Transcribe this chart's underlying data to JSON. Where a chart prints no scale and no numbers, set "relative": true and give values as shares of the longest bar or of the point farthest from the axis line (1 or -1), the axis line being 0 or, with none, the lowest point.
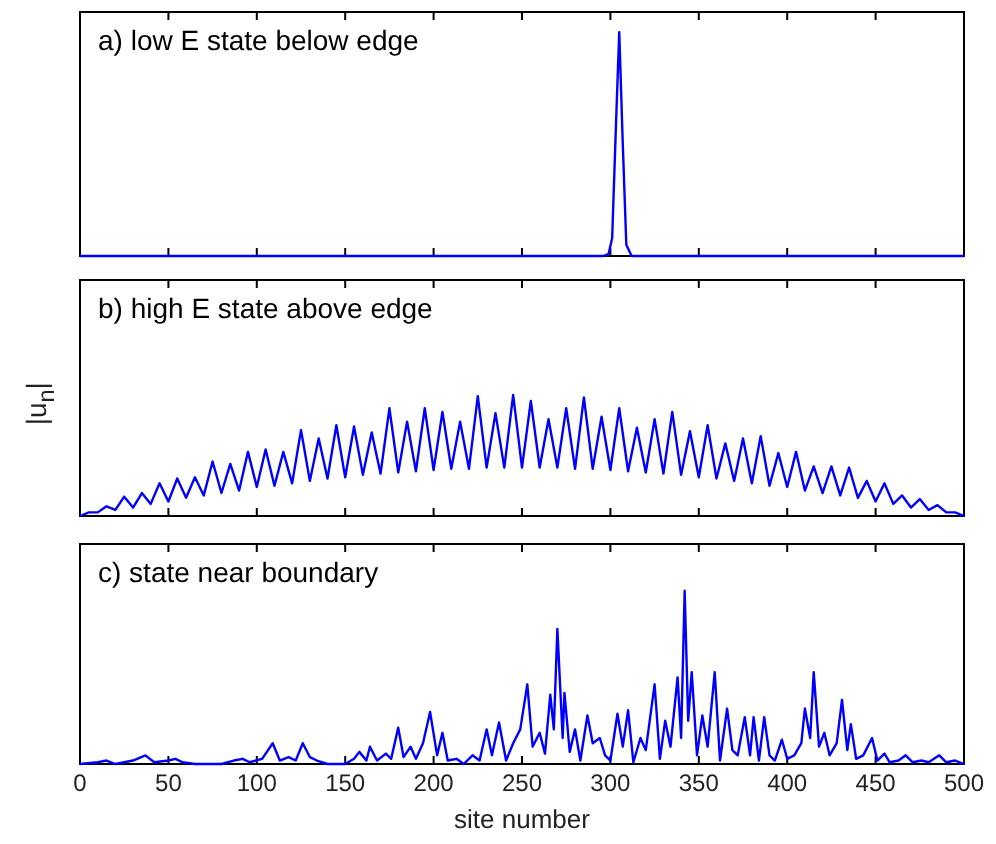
{
  "chart_data": [
    {
      "type": "line",
      "title": "a) low E state below edge",
      "relative": true,
      "marker": "none",
      "tick_labels": false,
      "xlim": [
        0,
        500
      ],
      "xticks": [
        0,
        50,
        100,
        150,
        200,
        250,
        300,
        350,
        400,
        450,
        500
      ],
      "series": [
        {
          "color": "#0000ff",
          "x": [
            0,
            296,
            299,
            301,
            303,
            305,
            307,
            309,
            312,
            500
          ],
          "values": [
            0,
            0,
            0.01,
            0.08,
            0.55,
            1,
            0.5,
            0.05,
            0,
            0
          ]
        }
      ]
    },
    {
      "type": "line",
      "title": "b) high E state above edge",
      "ylabel": "|u$_{n}$|",
      "relative": true,
      "marker": "none",
      "tick_labels": false,
      "xlim": [
        0,
        500
      ],
      "xticks": [
        0,
        50,
        100,
        150,
        200,
        250,
        300,
        350,
        400,
        450,
        500
      ],
      "series": [
        {
          "color": "#0000ff",
          "x": [
            0,
            5,
            10,
            15,
            20,
            25,
            30,
            35,
            40,
            45,
            50,
            55,
            60,
            65,
            70,
            75,
            80,
            85,
            90,
            95,
            100,
            105,
            110,
            115,
            120,
            125,
            130,
            135,
            140,
            145,
            150,
            155,
            160,
            165,
            170,
            175,
            180,
            185,
            190,
            195,
            200,
            205,
            210,
            215,
            220,
            225,
            230,
            235,
            240,
            245,
            250,
            255,
            260,
            265,
            270,
            275,
            280,
            285,
            290,
            295,
            300,
            305,
            310,
            315,
            320,
            325,
            330,
            335,
            340,
            345,
            350,
            355,
            360,
            365,
            370,
            375,
            380,
            385,
            390,
            395,
            400,
            405,
            410,
            415,
            420,
            425,
            430,
            435,
            440,
            445,
            450,
            455,
            460,
            465,
            470,
            475,
            480,
            485,
            490,
            495,
            500
          ],
          "values": [
            0,
            0.03,
            0.03,
            0.08,
            0.05,
            0.16,
            0.07,
            0.19,
            0.1,
            0.27,
            0.12,
            0.31,
            0.15,
            0.32,
            0.17,
            0.45,
            0.19,
            0.43,
            0.21,
            0.53,
            0.24,
            0.55,
            0.25,
            0.53,
            0.27,
            0.71,
            0.29,
            0.64,
            0.31,
            0.75,
            0.32,
            0.74,
            0.34,
            0.69,
            0.35,
            0.89,
            0.36,
            0.78,
            0.37,
            0.89,
            0.38,
            0.86,
            0.39,
            0.78,
            0.39,
            0.99,
            0.4,
            0.85,
            0.4,
            1,
            0.4,
            0.95,
            0.4,
            0.8,
            0.4,
            0.89,
            0.39,
            0.98,
            0.39,
            0.82,
            0.38,
            0.89,
            0.37,
            0.73,
            0.36,
            0.8,
            0.35,
            0.86,
            0.34,
            0.7,
            0.32,
            0.75,
            0.31,
            0.6,
            0.29,
            0.64,
            0.27,
            0.66,
            0.25,
            0.52,
            0.24,
            0.53,
            0.21,
            0.41,
            0.19,
            0.41,
            0.17,
            0.4,
            0.15,
            0.29,
            0.12,
            0.27,
            0.1,
            0.17,
            0.07,
            0.14,
            0.05,
            0.09,
            0.03,
            0.03,
            0
          ]
        }
      ]
    },
    {
      "type": "line",
      "title": "c) state near boundary",
      "xlabel": "site number",
      "relative": true,
      "marker": "none",
      "tick_labels": "x",
      "xlim": [
        0,
        500
      ],
      "xticks": [
        0,
        50,
        100,
        150,
        200,
        250,
        300,
        350,
        400,
        450,
        500
      ],
      "series": [
        {
          "color": "#0000ff",
          "x": [
            0,
            10,
            15,
            20,
            30,
            37,
            42,
            50,
            54,
            58,
            65,
            80,
            87,
            92,
            96,
            103,
            109,
            113,
            118,
            122,
            126,
            130,
            134,
            140,
            150,
            155,
            158,
            162,
            164,
            168,
            173,
            176,
            180,
            183,
            187,
            190,
            194,
            198,
            202,
            205,
            208,
            213,
            217,
            222,
            226,
            230,
            233,
            237,
            241,
            245,
            249,
            253,
            256,
            260,
            263,
            266,
            268,
            270,
            273,
            274,
            277,
            280,
            283,
            287,
            290,
            294,
            297,
            300,
            304,
            307,
            310,
            313,
            317,
            320,
            325,
            328,
            331,
            334,
            338,
            340,
            342,
            344,
            346,
            349,
            352,
            355,
            359,
            362,
            366,
            369,
            372,
            376,
            379,
            381,
            384,
            387,
            390,
            393,
            397,
            400,
            404,
            408,
            410,
            413,
            415,
            418,
            421,
            424,
            428,
            431,
            434,
            436,
            439,
            443,
            448,
            451,
            455,
            458,
            463,
            467,
            471,
            476,
            480,
            486,
            490,
            495,
            500
          ],
          "values": [
            0,
            0.01,
            0.02,
            0,
            0.02,
            0.05,
            0.01,
            0.02,
            0.03,
            0.01,
            0,
            0,
            0.02,
            0.03,
            0.01,
            0.03,
            0.12,
            0.02,
            0.04,
            0.02,
            0.12,
            0.04,
            0.02,
            0,
            0,
            0.03,
            0.07,
            0.02,
            0.1,
            0.02,
            0.06,
            0.03,
            0.21,
            0.04,
            0.1,
            0.03,
            0.12,
            0.3,
            0.05,
            0.18,
            0.02,
            0.03,
            0,
            0.05,
            0.02,
            0.2,
            0.05,
            0.24,
            0.02,
            0.12,
            0.2,
            0.46,
            0.1,
            0.18,
            0.06,
            0.4,
            0.2,
            0.78,
            0.15,
            0.41,
            0.07,
            0.2,
            0.02,
            0.28,
            0.12,
            0.15,
            0.05,
            0.02,
            0.29,
            0.1,
            0.31,
            0.01,
            0.15,
            0.08,
            0.46,
            0.03,
            0.25,
            0.1,
            0.5,
            0.15,
            1,
            0.25,
            0.53,
            0.05,
            0.28,
            0.1,
            0.53,
            0.02,
            0.32,
            0.08,
            0.05,
            0.27,
            0.05,
            0.27,
            0.02,
            0.27,
            0.05,
            0.02,
            0.14,
            0.03,
            0.05,
            0.12,
            0.32,
            0.15,
            0.53,
            0.1,
            0.18,
            0.05,
            0.12,
            0.37,
            0.08,
            0.23,
            0.03,
            0.05,
            0.15,
            0.02,
            0.06,
            0.01,
            0.02,
            0.05,
            0.01,
            0.02,
            0.01,
            0.05,
            0.01,
            0.02,
            0
          ]
        }
      ]
    }
  ]
}
